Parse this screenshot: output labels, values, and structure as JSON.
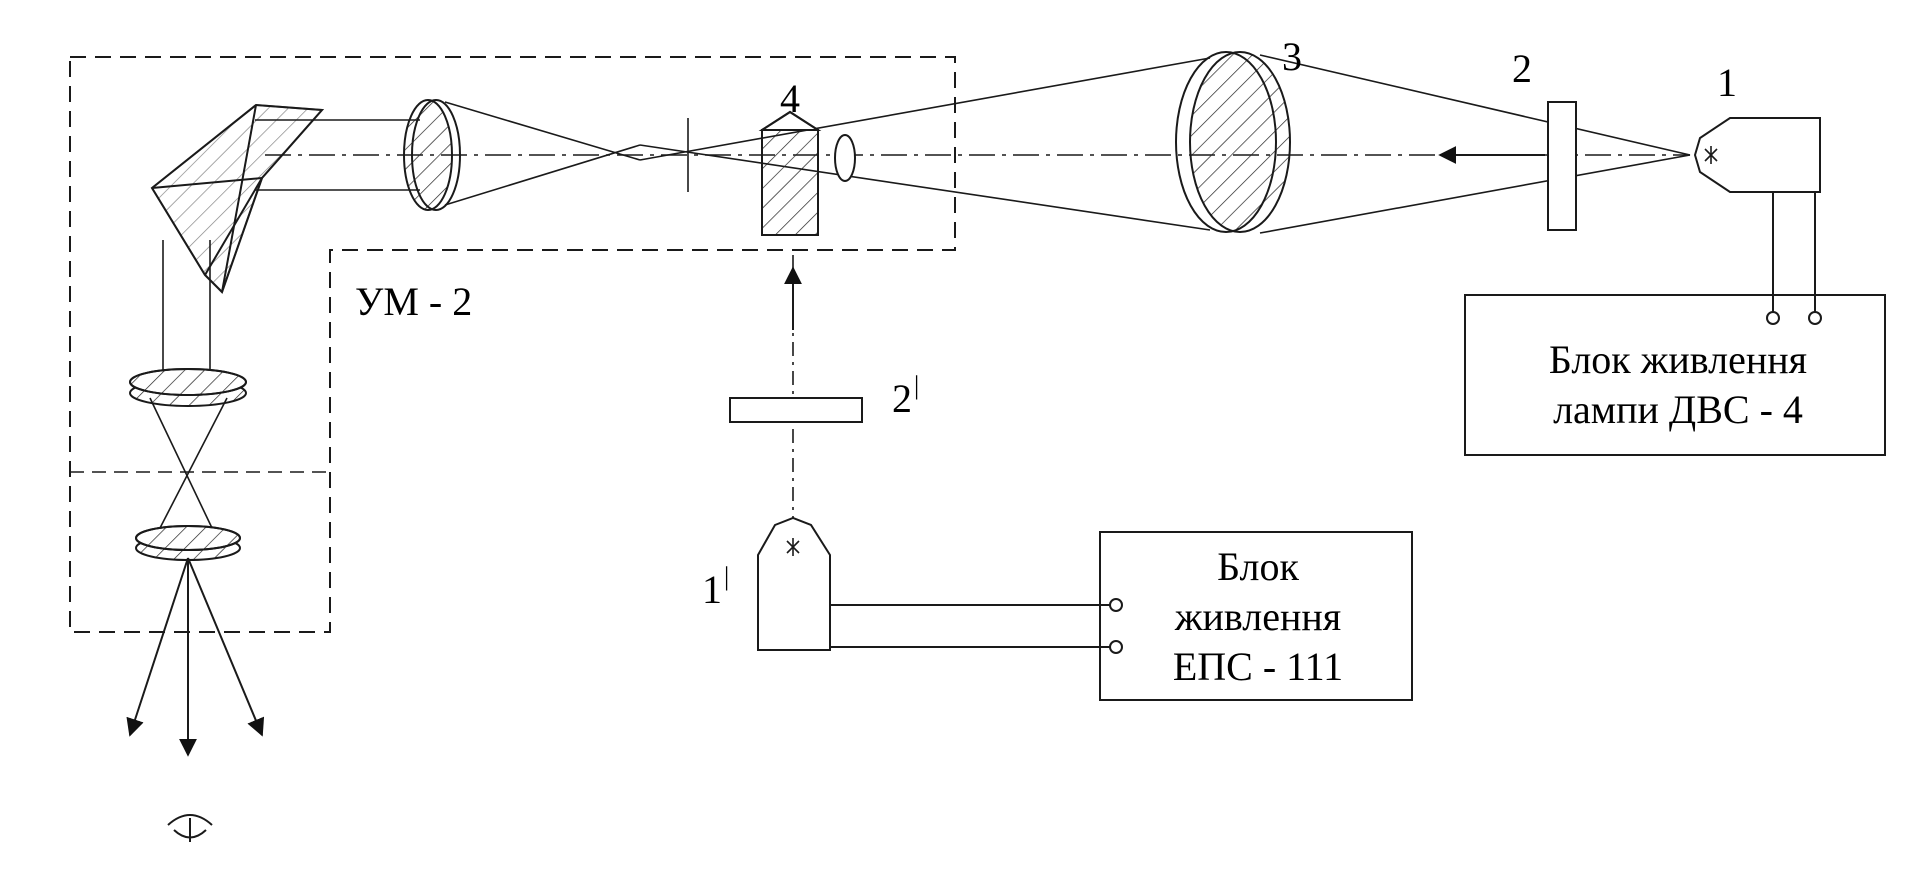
{
  "diagram": {
    "labels": {
      "lamp_dvs": "1",
      "filter": "2",
      "lens": "3",
      "prism": "4",
      "lamp_eps": "1",
      "lamp_eps_prime": "|",
      "filter_2": "2",
      "filter_2_prime": "|",
      "monochromator": "УМ - 2"
    },
    "boxes": {
      "psu_dvs": [
        "Блок живлення",
        "лампи ДВС - 4"
      ],
      "psu_eps": [
        "Блок",
        "живлення",
        "ЕПС - 111"
      ]
    },
    "colors": {
      "ink": "#1a1a1a",
      "paper": "#ffffff"
    }
  }
}
